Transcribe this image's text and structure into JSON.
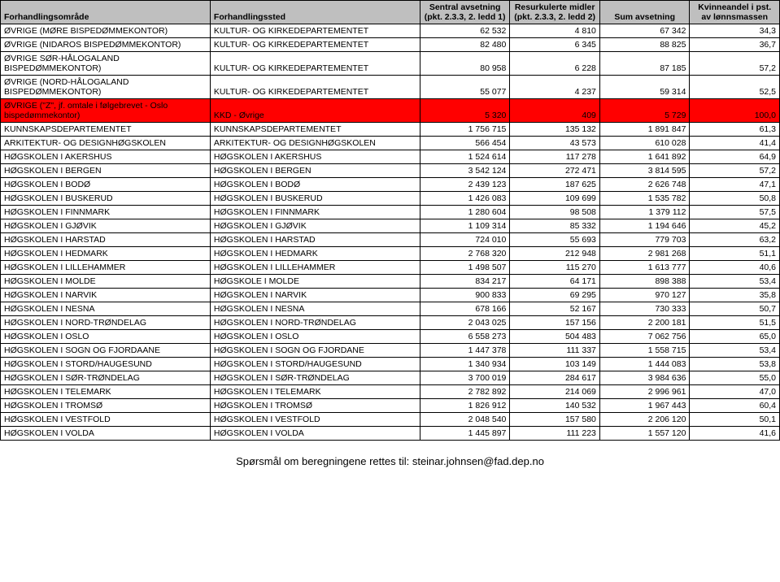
{
  "headers": {
    "col1": "Forhandlingsområde",
    "col2": "Forhandlingssted",
    "col3": "Sentral avsetning (pkt. 2.3.3, 2. ledd 1)",
    "col4": "Resurkulerte midler (pkt. 2.3.3, 2. ledd 2)",
    "col5": "Sum avsetning",
    "col6": "Kvinneandel i pst. av lønnsmassen"
  },
  "rows": [
    {
      "a": "ØVRIGE (MØRE BISPEDØMMEKONTOR)",
      "b": "KULTUR- OG KIRKEDEPARTEMENTET",
      "c": "62 532",
      "d": "4 810",
      "e": "67 342",
      "f": "34,3",
      "red": false
    },
    {
      "a": "ØVRIGE (NIDAROS BISPEDØMMEKONTOR)",
      "b": "KULTUR- OG KIRKEDEPARTEMENTET",
      "c": "82 480",
      "d": "6 345",
      "e": "88 825",
      "f": "36,7",
      "red": false
    },
    {
      "a": "ØVRIGE SØR-HÅLOGALAND BISPEDØMMEKONTOR)",
      "b": "KULTUR- OG KIRKEDEPARTEMENTET",
      "c": "80 958",
      "d": "6 228",
      "e": "87 185",
      "f": "57,2",
      "red": false
    },
    {
      "a": "ØVRIGE (NORD-HÅLOGALAND BISPEDØMMEKONTOR)",
      "b": "KULTUR- OG KIRKEDEPARTEMENTET",
      "c": "55 077",
      "d": "4 237",
      "e": "59 314",
      "f": "52,5",
      "red": false
    },
    {
      "a": "ØVRIGE (\"Z\", jf. omtale i følgebrevet - Oslo bispedømmekontor)",
      "b": "KKD - Øvrige",
      "c": "5 320",
      "d": "409",
      "e": "5 729",
      "f": "100,0",
      "red": true
    },
    {
      "a": "KUNNSKAPSDEPARTEMENTET",
      "b": "KUNNSKAPSDEPARTEMENTET",
      "c": "1 756 715",
      "d": "135 132",
      "e": "1 891 847",
      "f": "61,3",
      "red": false
    },
    {
      "a": "ARKITEKTUR- OG DESIGNHØGSKOLEN",
      "b": "ARKITEKTUR- OG DESIGNHØGSKOLEN",
      "c": "566 454",
      "d": "43 573",
      "e": "610 028",
      "f": "41,4",
      "red": false
    },
    {
      "a": "HØGSKOLEN I AKERSHUS",
      "b": "HØGSKOLEN I AKERSHUS",
      "c": "1 524 614",
      "d": "117 278",
      "e": "1 641 892",
      "f": "64,9",
      "red": false
    },
    {
      "a": "HØGSKOLEN I BERGEN",
      "b": "HØGSKOLEN I BERGEN",
      "c": "3 542 124",
      "d": "272 471",
      "e": "3 814 595",
      "f": "57,2",
      "red": false
    },
    {
      "a": "HØGSKOLEN I BODØ",
      "b": "HØGSKOLEN I BODØ",
      "c": "2 439 123",
      "d": "187 625",
      "e": "2 626 748",
      "f": "47,1",
      "red": false
    },
    {
      "a": "HØGSKOLEN I BUSKERUD",
      "b": "HØGSKOLEN I BUSKERUD",
      "c": "1 426 083",
      "d": "109 699",
      "e": "1 535 782",
      "f": "50,8",
      "red": false
    },
    {
      "a": "HØGSKOLEN I FINNMARK",
      "b": "HØGSKOLEN I FINNMARK",
      "c": "1 280 604",
      "d": "98 508",
      "e": "1 379 112",
      "f": "57,5",
      "red": false
    },
    {
      "a": "HØGSKOLEN I GJØVIK",
      "b": "HØGSKOLEN I GJØVIK",
      "c": "1 109 314",
      "d": "85 332",
      "e": "1 194 646",
      "f": "45,2",
      "red": false
    },
    {
      "a": "HØGSKOLEN I HARSTAD",
      "b": "HØGSKOLEN I HARSTAD",
      "c": "724 010",
      "d": "55 693",
      "e": "779 703",
      "f": "63,2",
      "red": false
    },
    {
      "a": "HØGSKOLEN I HEDMARK",
      "b": "HØGSKOLEN I HEDMARK",
      "c": "2 768 320",
      "d": "212 948",
      "e": "2 981 268",
      "f": "51,1",
      "red": false
    },
    {
      "a": "HØGSKOLEN I LILLEHAMMER",
      "b": "HØGSKOLEN I LILLEHAMMER",
      "c": "1 498 507",
      "d": "115 270",
      "e": "1 613 777",
      "f": "40,6",
      "red": false
    },
    {
      "a": "HØGSKOLEN I MOLDE",
      "b": "HØGSKOLE I MOLDE",
      "c": "834 217",
      "d": "64 171",
      "e": "898 388",
      "f": "53,4",
      "red": false
    },
    {
      "a": "HØGSKOLEN I NARVIK",
      "b": "HØGSKOLEN I NARVIK",
      "c": "900 833",
      "d": "69 295",
      "e": "970 127",
      "f": "35,8",
      "red": false
    },
    {
      "a": "HØGSKOLEN I NESNA",
      "b": "HØGSKOLEN I NESNA",
      "c": "678 166",
      "d": "52 167",
      "e": "730 333",
      "f": "50,7",
      "red": false
    },
    {
      "a": "HØGSKOLEN I NORD-TRØNDELAG",
      "b": "HØGSKOLEN I NORD-TRØNDELAG",
      "c": "2 043 025",
      "d": "157 156",
      "e": "2 200 181",
      "f": "51,5",
      "red": false
    },
    {
      "a": "HØGSKOLEN I OSLO",
      "b": "HØGSKOLEN I OSLO",
      "c": "6 558 273",
      "d": "504 483",
      "e": "7 062 756",
      "f": "65,0",
      "red": false
    },
    {
      "a": "HØGSKOLEN I SOGN OG FJORDAANE",
      "b": "HØGSKOLEN I SOGN OG FJORDANE",
      "c": "1 447 378",
      "d": "111 337",
      "e": "1 558 715",
      "f": "53,4",
      "red": false
    },
    {
      "a": "HØGSKOLEN I STORD/HAUGESUND",
      "b": "HØGSKOLEN I STORD/HAUGESUND",
      "c": "1 340 934",
      "d": "103 149",
      "e": "1 444 083",
      "f": "53,8",
      "red": false
    },
    {
      "a": "HØGSKOLEN I SØR-TRØNDELAG",
      "b": "HØGSKOLEN I SØR-TRØNDELAG",
      "c": "3 700 019",
      "d": "284 617",
      "e": "3 984 636",
      "f": "55,0",
      "red": false
    },
    {
      "a": "HØGSKOLEN I TELEMARK",
      "b": "HØGSKOLEN I TELEMARK",
      "c": "2 782 892",
      "d": "214 069",
      "e": "2 996 961",
      "f": "47,0",
      "red": false
    },
    {
      "a": "HØGSKOLEN I TROMSØ",
      "b": "HØGSKOLEN I TROMSØ",
      "c": "1 826 912",
      "d": "140 532",
      "e": "1 967 443",
      "f": "60,4",
      "red": false
    },
    {
      "a": "HØGSKOLEN I VESTFOLD",
      "b": "HØGSKOLEN I VESTFOLD",
      "c": "2 048 540",
      "d": "157 580",
      "e": "2 206 120",
      "f": "50,1",
      "red": false
    },
    {
      "a": "HØGSKOLEN I VOLDA",
      "b": "HØGSKOLEN I VOLDA",
      "c": "1 445 897",
      "d": "111 223",
      "e": "1 557 120",
      "f": "41,6",
      "red": false
    }
  ],
  "footer": "Spørsmål om beregningene rettes til: steinar.johnsen@fad.dep.no",
  "colors": {
    "header_bg": "#bfbfbf",
    "red_bg": "#ff0000",
    "border": "#000000",
    "text": "#000000"
  }
}
